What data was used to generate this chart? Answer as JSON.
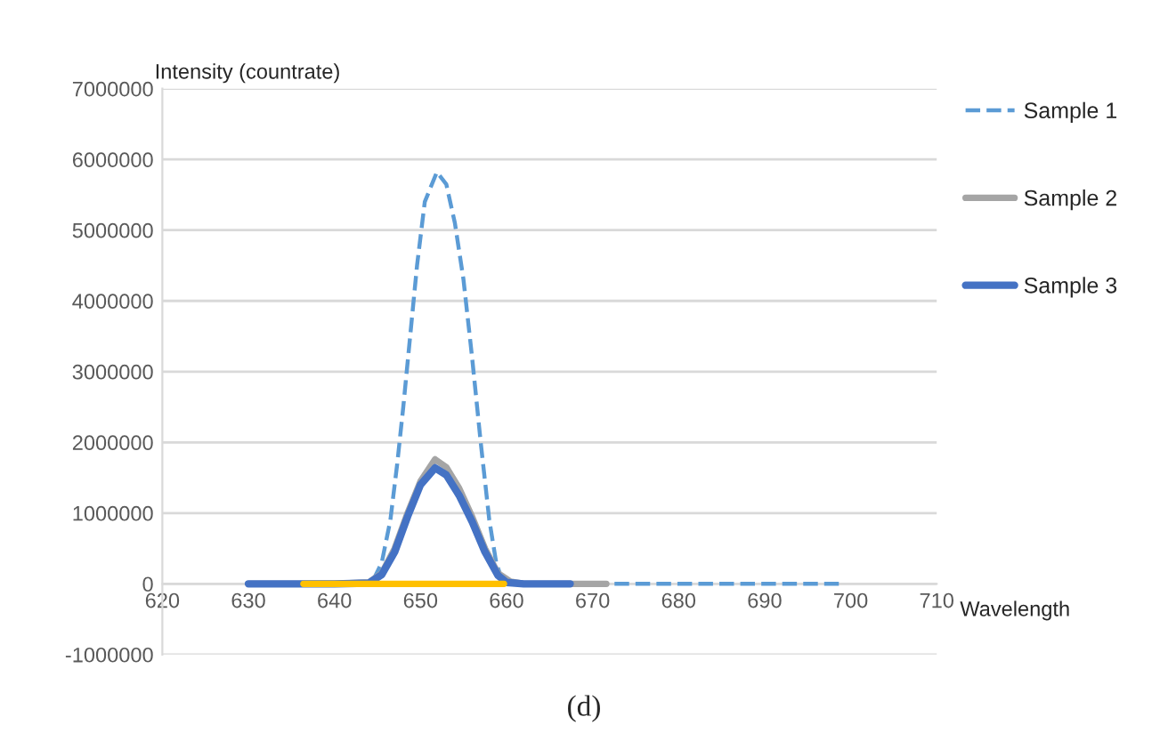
{
  "chart_data": {
    "type": "line",
    "ylabel": "Intensity (countrate)",
    "xlabel": "Wavelength",
    "xlim": [
      620,
      710
    ],
    "xticks": [
      620,
      630,
      640,
      650,
      660,
      670,
      680,
      690,
      700,
      710
    ],
    "ylim": [
      -1000000,
      7000000
    ],
    "yticks": [
      -1000000,
      0,
      1000000,
      2000000,
      3000000,
      4000000,
      5000000,
      6000000,
      7000000
    ],
    "grid": "y",
    "legend": "right",
    "annotations": [
      "(d)"
    ],
    "series": [
      {
        "name": "Sample 1",
        "color": "#5b9bd5",
        "line_style": "dashed",
        "x": [
          630,
          635,
          640,
          643,
          644.5,
          645.5,
          646.5,
          647.3,
          648,
          648.8,
          649.6,
          650.5,
          651.9,
          653,
          654,
          655,
          656,
          657,
          658,
          658.8,
          659.5,
          661,
          665,
          670,
          680,
          690,
          699
        ],
        "values": [
          0,
          0,
          0,
          0,
          50000,
          300000,
          900000,
          1700000,
          2500000,
          3500000,
          4500000,
          5400000,
          5820000,
          5650000,
          5100000,
          4300000,
          3200000,
          2000000,
          900000,
          300000,
          50000,
          20000,
          0,
          0,
          0,
          0,
          0
        ]
      },
      {
        "name": "Sample 2",
        "color": "#a5a5a5",
        "line_style": "solid",
        "x": [
          630,
          640,
          644,
          645.5,
          647,
          648.5,
          650,
          651.7,
          653,
          654.5,
          656,
          657.5,
          659,
          660.5,
          662,
          665,
          671.6
        ],
        "values": [
          0,
          0,
          20000,
          150000,
          500000,
          1000000,
          1450000,
          1760000,
          1650000,
          1350000,
          950000,
          500000,
          150000,
          30000,
          0,
          0,
          0
        ]
      },
      {
        "name": "Sample 3",
        "color": "#4472c4",
        "line_style": "solid",
        "x": [
          630,
          640,
          644,
          645.5,
          647,
          648.5,
          650,
          651.7,
          653,
          654.5,
          656,
          657.5,
          659,
          660,
          662,
          667.4
        ],
        "values": [
          0,
          0,
          10000,
          130000,
          450000,
          950000,
          1400000,
          1640000,
          1540000,
          1250000,
          880000,
          450000,
          120000,
          20000,
          0,
          0
        ]
      },
      {
        "color": "#ffc000",
        "line_style": "solid",
        "x": [
          636.4,
          659.7
        ],
        "values": [
          0,
          0
        ]
      }
    ]
  }
}
